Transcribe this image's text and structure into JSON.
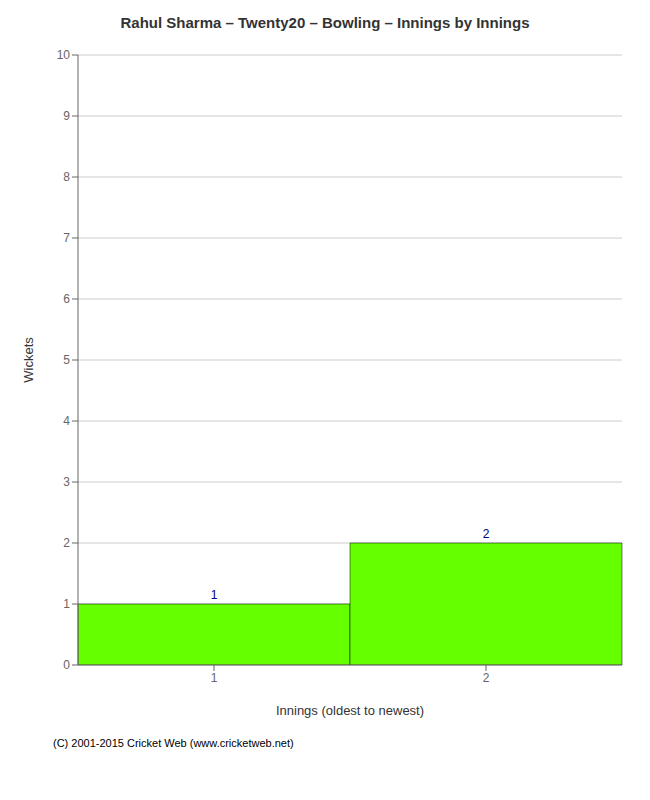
{
  "chart_data": {
    "type": "bar",
    "title": "Rahul Sharma – Twenty20 – Bowling – Innings by Innings",
    "xlabel": "Innings (oldest to newest)",
    "ylabel": "Wickets",
    "categories": [
      "1",
      "2"
    ],
    "values": [
      1,
      2
    ],
    "color": "#66ff00",
    "ylim": [
      0,
      10
    ],
    "yticks": [
      0,
      1,
      2,
      3,
      4,
      5,
      6,
      7,
      8,
      9,
      10
    ],
    "grid": true,
    "data_labels": true,
    "annotations": [
      "(C) 2001-2015 Cricket Web (www.cricketweb.net)"
    ]
  }
}
